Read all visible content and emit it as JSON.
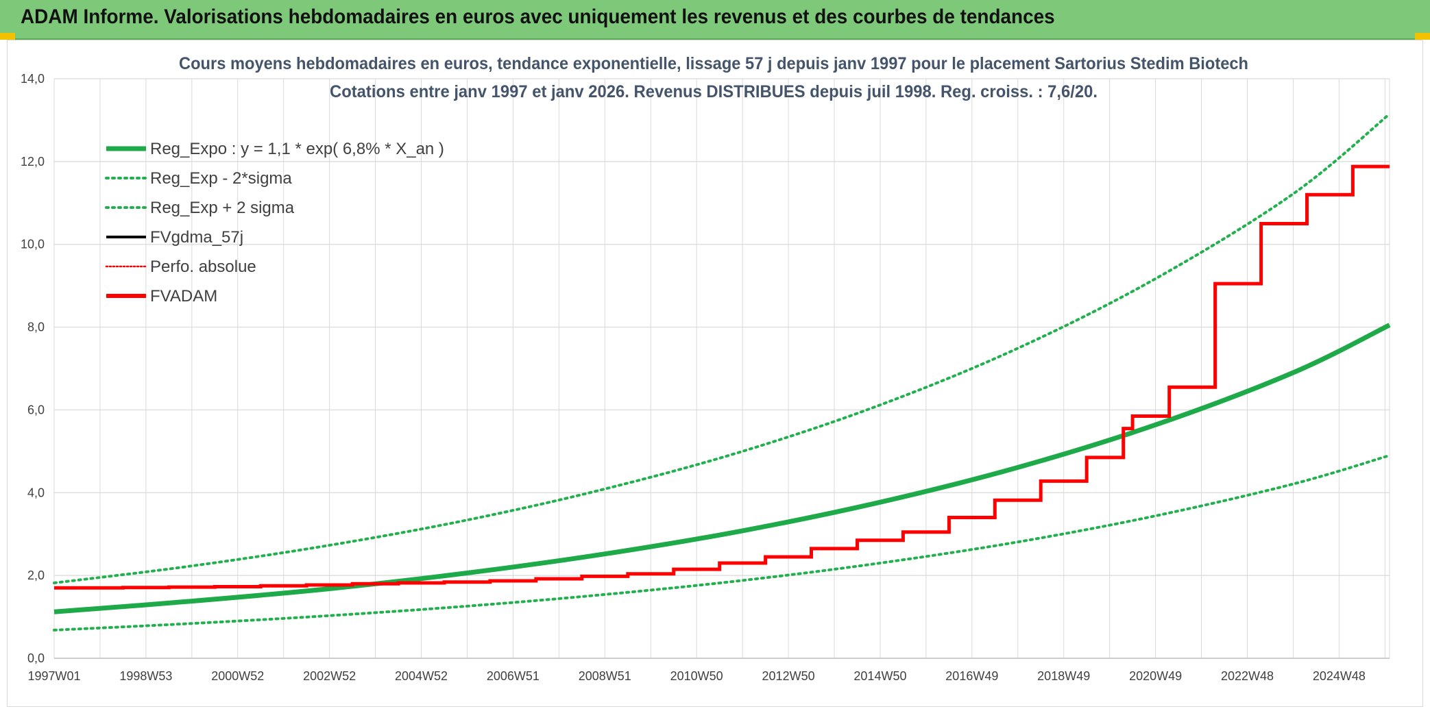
{
  "banner": {
    "title": "ADAM Informe. Valorisations hebdomadaires en euros avec uniquement les revenus et des courbes de tendances"
  },
  "colors": {
    "banner": "#7ec87a",
    "reg_green": "#1faa4a",
    "band_green": "#22b04f",
    "black": "#000000",
    "red": "#ff0000",
    "grid": "#d9d9d9"
  },
  "chart_data": {
    "type": "line",
    "title_lines": [
      "Cours moyens hebdomadaires en euros, tendance exponentielle, lissage 57 j depuis janv 1997 pour le placement Sartorius Stedim Biotech",
      "Cotations entre janv 1997 et janv 2026. Revenus DISTRIBUES depuis juil 1998. Reg. croiss. : 7,6/20."
    ],
    "xlabel": "",
    "ylabel": "",
    "ylim": [
      0,
      14
    ],
    "xlim": [
      1997.0,
      2026.1
    ],
    "y_ticks": [
      "0,0",
      "2,0",
      "4,0",
      "6,0",
      "8,0",
      "10,0",
      "12,0",
      "14,0"
    ],
    "x_tick_labels": [
      "1997W01",
      "1998W53",
      "2000W52",
      "2002W52",
      "2004W52",
      "2006W51",
      "2008W51",
      "2010W50",
      "2012W50",
      "2014W50",
      "2016W49",
      "2018W49",
      "2020W49",
      "2022W48",
      "2024W48"
    ],
    "x_tick_positions": [
      1997.0,
      1999.0,
      2001.0,
      2003.0,
      2005.0,
      2007.0,
      2009.0,
      2011.0,
      2013.0,
      2015.0,
      2017.0,
      2019.0,
      2021.0,
      2023.0,
      2025.0
    ],
    "grid": true,
    "legend_position": "top-left",
    "legend": [
      "Reg_Expo : y = 1,1 * exp( 6,8% *  X_an )",
      "Reg_Exp - 2*sigma",
      "Reg_Exp + 2 sigma",
      "FVgdma_57j",
      "Perfo. absolue",
      "FVADAM"
    ],
    "series": [
      {
        "name": "Reg_Expo : y = 1,1 * exp( 6,8% *  X_an )",
        "style": "solid-thick-green",
        "points": [
          [
            1997.0,
            1.12
          ],
          [
            2000.0,
            1.38
          ],
          [
            2003.0,
            1.68
          ],
          [
            2006.0,
            2.06
          ],
          [
            2009.0,
            2.52
          ],
          [
            2012.0,
            3.08
          ],
          [
            2015.0,
            3.77
          ],
          [
            2018.0,
            4.61
          ],
          [
            2021.0,
            5.64
          ],
          [
            2024.0,
            6.9
          ],
          [
            2026.1,
            8.05
          ]
        ]
      },
      {
        "name": "Reg_Exp - 2*sigma",
        "style": "dotted-green",
        "points": [
          [
            1997.0,
            0.68
          ],
          [
            2000.0,
            0.84
          ],
          [
            2003.0,
            1.03
          ],
          [
            2006.0,
            1.26
          ],
          [
            2009.0,
            1.54
          ],
          [
            2012.0,
            1.88
          ],
          [
            2015.0,
            2.3
          ],
          [
            2018.0,
            2.81
          ],
          [
            2021.0,
            3.44
          ],
          [
            2024.0,
            4.21
          ],
          [
            2026.1,
            4.9
          ]
        ]
      },
      {
        "name": "Reg_Exp + 2 sigma",
        "style": "dotted-green",
        "points": [
          [
            1997.0,
            1.82
          ],
          [
            2000.0,
            2.23
          ],
          [
            2003.0,
            2.73
          ],
          [
            2006.0,
            3.34
          ],
          [
            2009.0,
            4.09
          ],
          [
            2012.0,
            5.0
          ],
          [
            2015.0,
            6.12
          ],
          [
            2018.0,
            7.49
          ],
          [
            2021.0,
            9.17
          ],
          [
            2024.0,
            11.22
          ],
          [
            2026.1,
            13.15
          ]
        ]
      },
      {
        "name": "FVgdma_57j",
        "style": "solid-black-smoothed",
        "points": []
      },
      {
        "name": "Perfo. absolue",
        "style": "dotted-red",
        "points": []
      },
      {
        "name": "FVADAM",
        "style": "step-thick-red",
        "points": [
          [
            1997.0,
            1.7
          ],
          [
            1998.5,
            1.7
          ],
          [
            1998.5,
            1.71
          ],
          [
            1999.5,
            1.71
          ],
          [
            1999.5,
            1.72
          ],
          [
            2000.5,
            1.72
          ],
          [
            2000.5,
            1.73
          ],
          [
            2001.5,
            1.73
          ],
          [
            2001.5,
            1.75
          ],
          [
            2002.5,
            1.75
          ],
          [
            2002.5,
            1.77
          ],
          [
            2003.5,
            1.77
          ],
          [
            2003.5,
            1.8
          ],
          [
            2004.5,
            1.8
          ],
          [
            2004.5,
            1.82
          ],
          [
            2005.5,
            1.82
          ],
          [
            2005.5,
            1.84
          ],
          [
            2006.5,
            1.84
          ],
          [
            2006.5,
            1.87
          ],
          [
            2007.5,
            1.87
          ],
          [
            2007.5,
            1.92
          ],
          [
            2008.5,
            1.92
          ],
          [
            2008.5,
            1.98
          ],
          [
            2009.5,
            1.98
          ],
          [
            2009.5,
            2.04
          ],
          [
            2010.5,
            2.04
          ],
          [
            2010.5,
            2.15
          ],
          [
            2011.5,
            2.15
          ],
          [
            2011.5,
            2.3
          ],
          [
            2012.5,
            2.3
          ],
          [
            2012.5,
            2.45
          ],
          [
            2013.5,
            2.45
          ],
          [
            2013.5,
            2.65
          ],
          [
            2014.5,
            2.65
          ],
          [
            2014.5,
            2.85
          ],
          [
            2015.5,
            2.85
          ],
          [
            2015.5,
            3.05
          ],
          [
            2016.5,
            3.05
          ],
          [
            2016.5,
            3.4
          ],
          [
            2017.5,
            3.4
          ],
          [
            2017.5,
            3.82
          ],
          [
            2018.5,
            3.82
          ],
          [
            2018.5,
            4.28
          ],
          [
            2019.5,
            4.28
          ],
          [
            2019.5,
            4.85
          ],
          [
            2020.3,
            4.85
          ],
          [
            2020.3,
            5.55
          ],
          [
            2020.5,
            5.55
          ],
          [
            2020.5,
            5.85
          ],
          [
            2021.3,
            5.85
          ],
          [
            2021.3,
            6.55
          ],
          [
            2022.3,
            6.55
          ],
          [
            2022.3,
            9.05
          ],
          [
            2023.3,
            9.05
          ],
          [
            2023.3,
            10.5
          ],
          [
            2024.3,
            10.5
          ],
          [
            2024.3,
            11.2
          ],
          [
            2025.3,
            11.2
          ],
          [
            2025.3,
            11.88
          ],
          [
            2026.1,
            11.88
          ]
        ]
      }
    ]
  }
}
